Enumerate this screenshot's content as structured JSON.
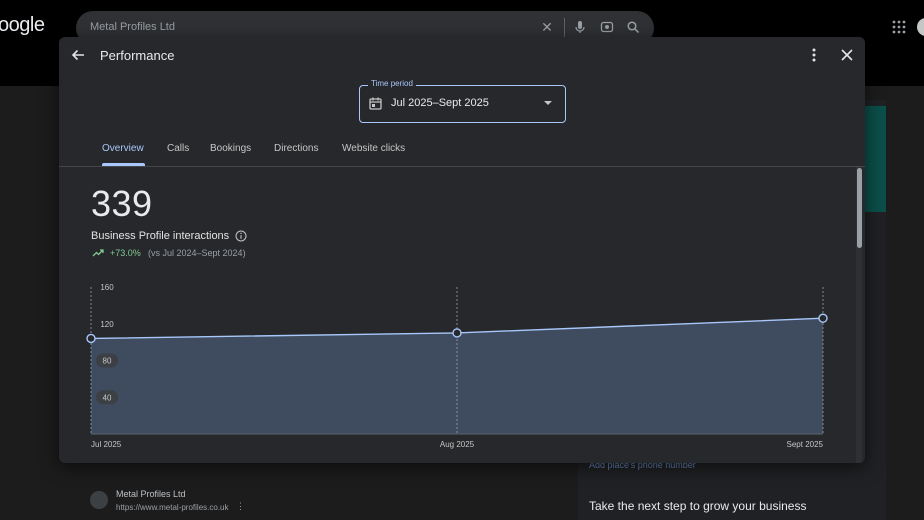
{
  "background": {
    "logo": "oogle",
    "search_query": "Metal Profiles Ltd",
    "phone_link": "Add place's phone number",
    "grow_title": "Take the next step to grow your business",
    "result": {
      "name": "Metal Profiles Ltd",
      "url": "https://www.metal-profiles.co.uk"
    }
  },
  "modal": {
    "title": "Performance",
    "time_period": {
      "label": "Time period",
      "value": "Jul 2025–Sept 2025"
    },
    "tabs": [
      {
        "label": "Overview",
        "active": true
      },
      {
        "label": "Calls"
      },
      {
        "label": "Bookings"
      },
      {
        "label": "Directions"
      },
      {
        "label": "Website clicks"
      }
    ],
    "metric": {
      "value": "339",
      "label": "Business Profile interactions",
      "trend": "+73.0%",
      "comparison": "(vs Jul 2024–Sept 2024)"
    }
  },
  "colors": {
    "accent": "#a8c7fa",
    "trend_positive": "#81c995",
    "area_fill": "#3f4b5f"
  },
  "chart_data": {
    "type": "area",
    "categories": [
      "Jul 2025",
      "Aug 2025",
      "Sept 2025"
    ],
    "values": [
      104,
      110,
      126
    ],
    "ylim": [
      0,
      160
    ],
    "yticks": [
      160,
      120,
      80,
      40
    ],
    "grid": false
  }
}
